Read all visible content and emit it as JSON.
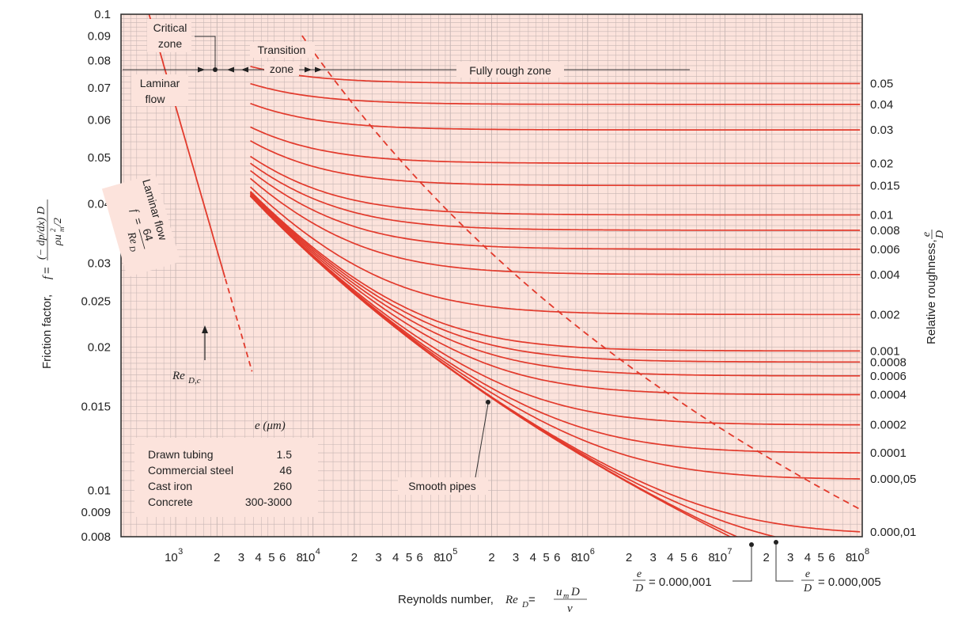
{
  "colors": {
    "plot_bg": "#fce3dc",
    "grid": "#c6b5b3",
    "curve": "#e23a2c",
    "frame": "#333333"
  },
  "chart_data": {
    "type": "line",
    "x_scale": "log",
    "y_scale": "log",
    "xlim": [
      400,
      100000000
    ],
    "ylim": [
      0.008,
      0.1
    ],
    "y_ticks": [
      {
        "value": 0.1,
        "label": "0.1"
      },
      {
        "value": 0.09,
        "label": "0.09"
      },
      {
        "value": 0.08,
        "label": "0.08"
      },
      {
        "value": 0.07,
        "label": "0.07"
      },
      {
        "value": 0.06,
        "label": "0.06"
      },
      {
        "value": 0.05,
        "label": "0.05"
      },
      {
        "value": 0.04,
        "label": "0.04"
      },
      {
        "value": 0.03,
        "label": "0.03"
      },
      {
        "value": 0.025,
        "label": "0.025"
      },
      {
        "value": 0.02,
        "label": "0.02"
      },
      {
        "value": 0.015,
        "label": "0.015"
      },
      {
        "value": 0.01,
        "label": "0.01"
      },
      {
        "value": 0.009,
        "label": "0.009"
      },
      {
        "value": 0.008,
        "label": "0.008"
      }
    ],
    "x_ticks": [
      {
        "value": 1000,
        "base": "10",
        "exp": "3"
      },
      {
        "value": 2000,
        "label": "2"
      },
      {
        "value": 3000,
        "label": "3"
      },
      {
        "value": 4000,
        "label": "4"
      },
      {
        "value": 5000,
        "label": "5"
      },
      {
        "value": 6000,
        "label": "6"
      },
      {
        "value": 8000,
        "label": "8"
      },
      {
        "value": 10000,
        "base": "10",
        "exp": "4"
      },
      {
        "value": 20000,
        "label": "2"
      },
      {
        "value": 30000,
        "label": "3"
      },
      {
        "value": 40000,
        "label": "4"
      },
      {
        "value": 50000,
        "label": "5"
      },
      {
        "value": 60000,
        "label": "6"
      },
      {
        "value": 80000,
        "label": "8"
      },
      {
        "value": 100000,
        "base": "10",
        "exp": "5"
      },
      {
        "value": 200000,
        "label": "2"
      },
      {
        "value": 300000,
        "label": "3"
      },
      {
        "value": 400000,
        "label": "4"
      },
      {
        "value": 500000,
        "label": "5"
      },
      {
        "value": 600000,
        "label": "6"
      },
      {
        "value": 800000,
        "label": "8"
      },
      {
        "value": 1000000,
        "base": "10",
        "exp": "6"
      },
      {
        "value": 2000000,
        "label": "2"
      },
      {
        "value": 3000000,
        "label": "3"
      },
      {
        "value": 4000000,
        "label": "4"
      },
      {
        "value": 5000000,
        "label": "5"
      },
      {
        "value": 6000000,
        "label": "6"
      },
      {
        "value": 8000000,
        "label": "8"
      },
      {
        "value": 10000000,
        "base": "10",
        "exp": "7"
      },
      {
        "value": 20000000,
        "label": "2"
      },
      {
        "value": 30000000,
        "label": "3"
      },
      {
        "value": 40000000,
        "label": "4"
      },
      {
        "value": 50000000,
        "label": "5"
      },
      {
        "value": 60000000,
        "label": "6"
      },
      {
        "value": 80000000,
        "label": "8"
      },
      {
        "value": 100000000,
        "base": "10",
        "exp": "8"
      }
    ],
    "xlabel_text": "Reynolds number, ",
    "xlabel_sym": "Re",
    "xlabel_sub": "D",
    "xlabel_eq": " = ",
    "xlabel_num_u": "u",
    "xlabel_num_sub": "m",
    "xlabel_num_D": " D",
    "xlabel_den": "ν",
    "ylabel_text": "Friction factor, ",
    "ylabel_sym": "f",
    "ylabel_eq": " = ",
    "ylabel_num": "(− dp/dx) D",
    "ylabel_den": "ρu",
    "ylabel_den_sup": "2",
    "ylabel_den_sub": "m",
    "ylabel_den_tail": "/2",
    "y2label_text": "Relative roughness, ",
    "y2label_num": "e",
    "y2label_den": "D",
    "roughness": [
      {
        "eps": 0.05,
        "label": "0.05"
      },
      {
        "eps": 0.04,
        "label": "0.04"
      },
      {
        "eps": 0.03,
        "label": "0.03"
      },
      {
        "eps": 0.02,
        "label": "0.02"
      },
      {
        "eps": 0.015,
        "label": "0.015"
      },
      {
        "eps": 0.01,
        "label": "0.01"
      },
      {
        "eps": 0.008,
        "label": "0.008"
      },
      {
        "eps": 0.006,
        "label": "0.006"
      },
      {
        "eps": 0.004,
        "label": "0.004"
      },
      {
        "eps": 0.002,
        "label": "0.002"
      },
      {
        "eps": 0.001,
        "label": "0.001"
      },
      {
        "eps": 0.0008,
        "label": "0.0008"
      },
      {
        "eps": 0.0006,
        "label": "0.0006"
      },
      {
        "eps": 0.0004,
        "label": "0.0004"
      },
      {
        "eps": 0.0002,
        "label": "0.0002"
      },
      {
        "eps": 0.0001,
        "label": "0.0001"
      },
      {
        "eps": 5e-05,
        "label": "0.000,05"
      },
      {
        "eps": 1e-05,
        "label": "0.000,01"
      }
    ],
    "extra_curves": [
      {
        "eps": 5e-06
      },
      {
        "eps": 1e-06
      },
      {
        "eps": 0
      }
    ],
    "laminar": {
      "formula_f": "f",
      "formula_num": "64",
      "formula_den": "Re",
      "formula_den_sub": "D",
      "label": "Laminar flow",
      "re_c": 2300
    },
    "annotations": {
      "critical_zone": [
        "Critical",
        "zone"
      ],
      "transition_zone": [
        "Transition",
        "zone"
      ],
      "fully_rough_zone": "Fully rough zone",
      "laminar_flow": [
        "Laminar",
        "flow"
      ],
      "re_dc": "Re",
      "re_dc_sub": "D,c",
      "smooth_pipes": "Smooth pipes",
      "eps_001_num": "e",
      "eps_001_den": "D",
      "eps_001_val": "= 0.000,001",
      "eps_005_num": "e",
      "eps_005_den": "D",
      "eps_005_val": "= 0.000,005"
    },
    "material_table": {
      "header": "e (μm)",
      "rows": [
        {
          "name": "Drawn tubing",
          "e": "1.5"
        },
        {
          "name": "Commercial steel",
          "e": "46"
        },
        {
          "name": "Cast iron",
          "e": "260"
        },
        {
          "name": "Concrete",
          "e": "300-3000"
        }
      ]
    }
  }
}
